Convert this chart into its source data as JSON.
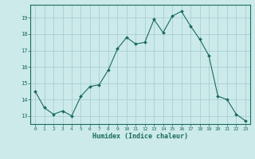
{
  "x": [
    0,
    1,
    2,
    3,
    4,
    5,
    6,
    7,
    8,
    9,
    10,
    11,
    12,
    13,
    14,
    15,
    16,
    17,
    18,
    19,
    20,
    21,
    22,
    23
  ],
  "y": [
    14.5,
    13.5,
    13.1,
    13.3,
    13.0,
    14.2,
    14.8,
    14.9,
    15.8,
    17.1,
    17.8,
    17.4,
    17.5,
    18.9,
    18.1,
    19.1,
    19.4,
    18.5,
    17.7,
    16.7,
    14.2,
    14.0,
    13.1,
    12.7
  ],
  "line_color": "#1a6b5a",
  "marker": "D",
  "marker_size": 2.0,
  "bg_color": "#cceaea",
  "grid_color": "#aacfcf",
  "tick_color": "#1a6b5a",
  "label_color": "#1a6b5a",
  "xlabel": "Humidex (Indice chaleur)",
  "ylim": [
    12.5,
    19.8
  ],
  "yticks": [
    13,
    14,
    15,
    16,
    17,
    18,
    19
  ],
  "xticks": [
    0,
    1,
    2,
    3,
    4,
    5,
    6,
    7,
    8,
    9,
    10,
    11,
    12,
    13,
    14,
    15,
    16,
    17,
    18,
    19,
    20,
    21,
    22,
    23
  ],
  "xlim": [
    -0.5,
    23.5
  ]
}
